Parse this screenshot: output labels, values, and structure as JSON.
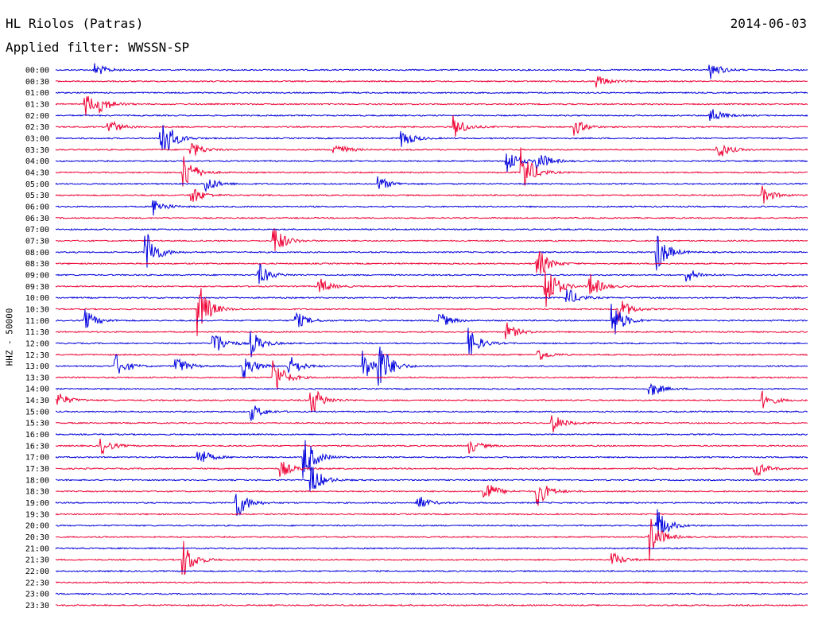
{
  "header": {
    "station": "HL Riolos (Patras)",
    "date": "2014-06-03",
    "filter": "Applied filter: WWSSN-SP"
  },
  "chart_data": {
    "type": "line",
    "title": "HL Riolos (Patras)",
    "date": "2014-06-03",
    "filter": "WWSSN-SP",
    "ylabel": "HHZ - 50000",
    "xlabel": "",
    "colors": [
      "#0000dd",
      "#ee0033"
    ],
    "rows": [
      {
        "label": "00:00",
        "events": [
          [
            0.052,
            0.25
          ],
          [
            0.87,
            0.32
          ]
        ]
      },
      {
        "label": "00:30",
        "events": [
          [
            0.72,
            0.22
          ]
        ]
      },
      {
        "label": "01:00",
        "events": []
      },
      {
        "label": "01:30",
        "events": [
          [
            0.04,
            0.4
          ],
          [
            0.06,
            0.22
          ]
        ]
      },
      {
        "label": "02:00",
        "events": [
          [
            0.87,
            0.3
          ]
        ]
      },
      {
        "label": "02:30",
        "events": [
          [
            0.07,
            0.3
          ],
          [
            0.53,
            0.4
          ],
          [
            0.69,
            0.28
          ]
        ]
      },
      {
        "label": "03:00",
        "events": [
          [
            0.14,
            1.0
          ],
          [
            0.46,
            0.35
          ]
        ]
      },
      {
        "label": "03:30",
        "events": [
          [
            0.18,
            0.3
          ],
          [
            0.37,
            0.3
          ],
          [
            0.88,
            0.35
          ]
        ]
      },
      {
        "label": "04:00",
        "events": [
          [
            0.6,
            0.45
          ],
          [
            0.64,
            0.4
          ]
        ]
      },
      {
        "label": "04:30",
        "events": [
          [
            0.17,
            0.7
          ],
          [
            0.62,
            0.85
          ]
        ]
      },
      {
        "label": "05:00",
        "events": [
          [
            0.2,
            0.3
          ],
          [
            0.43,
            0.25
          ]
        ]
      },
      {
        "label": "05:30",
        "events": [
          [
            0.18,
            0.35
          ],
          [
            0.94,
            0.3
          ]
        ]
      },
      {
        "label": "06:00",
        "events": [
          [
            0.13,
            0.3
          ]
        ]
      },
      {
        "label": "06:30",
        "events": []
      },
      {
        "label": "07:00",
        "events": []
      },
      {
        "label": "07:30",
        "events": [
          [
            0.29,
            0.55
          ]
        ]
      },
      {
        "label": "08:00",
        "events": [
          [
            0.12,
            0.8
          ],
          [
            0.8,
            0.7
          ]
        ]
      },
      {
        "label": "08:30",
        "events": [
          [
            0.64,
            0.6
          ]
        ]
      },
      {
        "label": "09:00",
        "events": [
          [
            0.27,
            0.4
          ],
          [
            0.84,
            0.25
          ]
        ]
      },
      {
        "label": "09:30",
        "events": [
          [
            0.65,
            1.0
          ],
          [
            0.71,
            0.45
          ],
          [
            0.35,
            0.3
          ]
        ]
      },
      {
        "label": "10:00",
        "events": [
          [
            0.68,
            0.35
          ]
        ]
      },
      {
        "label": "10:30",
        "events": [
          [
            0.19,
            0.95
          ],
          [
            0.75,
            0.4
          ]
        ]
      },
      {
        "label": "11:00",
        "events": [
          [
            0.04,
            0.35
          ],
          [
            0.32,
            0.3
          ],
          [
            0.74,
            0.7
          ],
          [
            0.51,
            0.3
          ]
        ]
      },
      {
        "label": "11:30",
        "events": [
          [
            0.6,
            0.3
          ]
        ]
      },
      {
        "label": "12:00",
        "events": [
          [
            0.21,
            0.5
          ],
          [
            0.26,
            0.45
          ],
          [
            0.55,
            0.5
          ]
        ]
      },
      {
        "label": "12:30",
        "events": [
          [
            0.64,
            0.25
          ]
        ]
      },
      {
        "label": "13:00",
        "events": [
          [
            0.08,
            0.4
          ],
          [
            0.16,
            0.35
          ],
          [
            0.25,
            0.45
          ],
          [
            0.31,
            0.4
          ],
          [
            0.41,
            0.55
          ],
          [
            0.43,
            0.9
          ]
        ]
      },
      {
        "label": "13:30",
        "events": [
          [
            0.29,
            0.7
          ]
        ]
      },
      {
        "label": "14:00",
        "events": [
          [
            0.79,
            0.3
          ]
        ]
      },
      {
        "label": "14:30",
        "events": [
          [
            0.0,
            0.35
          ],
          [
            0.34,
            0.55
          ],
          [
            0.94,
            0.3
          ]
        ]
      },
      {
        "label": "15:00",
        "events": [
          [
            0.26,
            0.3
          ]
        ]
      },
      {
        "label": "15:30",
        "events": [
          [
            0.66,
            0.35
          ]
        ]
      },
      {
        "label": "16:00",
        "events": []
      },
      {
        "label": "16:30",
        "events": [
          [
            0.06,
            0.3
          ],
          [
            0.55,
            0.25
          ]
        ]
      },
      {
        "label": "17:00",
        "events": [
          [
            0.19,
            0.35
          ],
          [
            0.33,
            0.85
          ]
        ]
      },
      {
        "label": "17:30",
        "events": [
          [
            0.3,
            0.3
          ],
          [
            0.93,
            0.3
          ]
        ]
      },
      {
        "label": "18:00",
        "events": [
          [
            0.34,
            0.55
          ]
        ]
      },
      {
        "label": "18:30",
        "events": [
          [
            0.57,
            0.45
          ],
          [
            0.64,
            0.55
          ]
        ]
      },
      {
        "label": "19:00",
        "events": [
          [
            0.24,
            0.6
          ],
          [
            0.48,
            0.3
          ]
        ]
      },
      {
        "label": "19:30",
        "events": []
      },
      {
        "label": "20:00",
        "events": [
          [
            0.8,
            0.6
          ]
        ]
      },
      {
        "label": "20:30",
        "events": [
          [
            0.79,
            0.75
          ]
        ]
      },
      {
        "label": "21:00",
        "events": []
      },
      {
        "label": "21:30",
        "events": [
          [
            0.17,
            0.65
          ],
          [
            0.74,
            0.25
          ]
        ]
      },
      {
        "label": "22:00",
        "events": []
      },
      {
        "label": "22:30",
        "events": []
      },
      {
        "label": "23:00",
        "events": []
      },
      {
        "label": "23:30",
        "events": []
      }
    ]
  }
}
